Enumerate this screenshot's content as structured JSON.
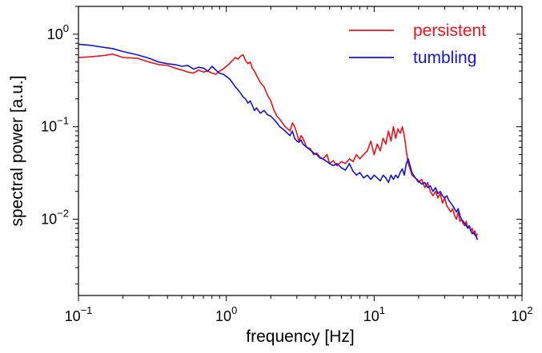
{
  "chart_data": {
    "type": "line",
    "xlabel": "frequency [Hz]",
    "ylabel": "spectral power [a.u.]",
    "xscale": "log",
    "yscale": "log",
    "xlim": [
      0.1,
      100
    ],
    "ylim": [
      0.0015,
      2.0
    ],
    "xticks": [
      {
        "value": 0.1,
        "base": "10",
        "exp": "−1"
      },
      {
        "value": 1,
        "base": "10",
        "exp": "0"
      },
      {
        "value": 10,
        "base": "10",
        "exp": "1"
      },
      {
        "value": 100,
        "base": "10",
        "exp": "2"
      }
    ],
    "yticks": [
      {
        "value": 0.01,
        "base": "10",
        "exp": "−2"
      },
      {
        "value": 0.1,
        "base": "10",
        "exp": "−1"
      },
      {
        "value": 1,
        "base": "10",
        "exp": "0"
      }
    ],
    "grid": false,
    "legend_position": "top-right",
    "series": [
      {
        "name": "persistent",
        "color": "#e8141c",
        "x": [
          0.1,
          0.12,
          0.15,
          0.17,
          0.2,
          0.25,
          0.3,
          0.35,
          0.4,
          0.45,
          0.5,
          0.55,
          0.6,
          0.65,
          0.7,
          0.75,
          0.8,
          0.85,
          0.9,
          0.95,
          1.0,
          1.05,
          1.1,
          1.15,
          1.2,
          1.25,
          1.3,
          1.35,
          1.4,
          1.45,
          1.5,
          1.55,
          1.6,
          1.7,
          1.8,
          1.9,
          2.0,
          2.1,
          2.2,
          2.3,
          2.4,
          2.5,
          2.6,
          2.7,
          2.8,
          2.9,
          3.0,
          3.1,
          3.2,
          3.3,
          3.5,
          3.7,
          3.9,
          4.1,
          4.3,
          4.5,
          4.8,
          5.0,
          5.3,
          5.6,
          6.0,
          6.4,
          6.8,
          7.2,
          7.6,
          8.0,
          8.5,
          9.0,
          9.5,
          10.0,
          10.5,
          11.0,
          11.5,
          12.0,
          12.5,
          13.0,
          13.5,
          14.0,
          14.5,
          15.0,
          15.5,
          16.0,
          16.5,
          17.0,
          17.5,
          18.0,
          19.0,
          20.0,
          21.0,
          22.0,
          23.0,
          24.0,
          25.0,
          26.0,
          27.0,
          28.0,
          29.0,
          30.0,
          31.0,
          32.0,
          33.0,
          34.0,
          35.0,
          36.0,
          37.0,
          38.0,
          39.0,
          40.0,
          41.0,
          42.0,
          43.0,
          44.0,
          45.0,
          46.0,
          47.0,
          48.0,
          49.0,
          50.0
        ],
        "y": [
          0.56,
          0.57,
          0.59,
          0.61,
          0.56,
          0.55,
          0.5,
          0.47,
          0.46,
          0.43,
          0.41,
          0.39,
          0.38,
          0.41,
          0.39,
          0.4,
          0.38,
          0.37,
          0.4,
          0.42,
          0.45,
          0.48,
          0.52,
          0.56,
          0.54,
          0.58,
          0.6,
          0.52,
          0.48,
          0.5,
          0.43,
          0.4,
          0.36,
          0.3,
          0.27,
          0.22,
          0.19,
          0.15,
          0.13,
          0.12,
          0.11,
          0.1,
          0.095,
          0.09,
          0.11,
          0.1,
          0.085,
          0.07,
          0.08,
          0.075,
          0.06,
          0.058,
          0.05,
          0.052,
          0.047,
          0.045,
          0.05,
          0.04,
          0.043,
          0.038,
          0.042,
          0.04,
          0.045,
          0.042,
          0.05,
          0.045,
          0.05,
          0.055,
          0.07,
          0.05,
          0.065,
          0.055,
          0.075,
          0.065,
          0.09,
          0.07,
          0.1,
          0.075,
          0.095,
          0.085,
          0.1,
          0.08,
          0.055,
          0.04,
          0.035,
          0.03,
          0.028,
          0.025,
          0.027,
          0.022,
          0.025,
          0.02,
          0.018,
          0.02,
          0.017,
          0.019,
          0.015,
          0.017,
          0.014,
          0.013,
          0.012,
          0.013,
          0.011,
          0.01,
          0.012,
          0.0095,
          0.01,
          0.009,
          0.0085,
          0.0095,
          0.008,
          0.0085,
          0.0075,
          0.008,
          0.007,
          0.0075,
          0.0065,
          0.007
        ]
      },
      {
        "name": "tumbling",
        "color": "#1414d2",
        "x": [
          0.1,
          0.12,
          0.15,
          0.17,
          0.2,
          0.25,
          0.3,
          0.35,
          0.4,
          0.45,
          0.5,
          0.55,
          0.6,
          0.65,
          0.7,
          0.75,
          0.8,
          0.85,
          0.9,
          0.95,
          1.0,
          1.05,
          1.1,
          1.15,
          1.2,
          1.25,
          1.3,
          1.35,
          1.4,
          1.45,
          1.5,
          1.55,
          1.6,
          1.7,
          1.8,
          1.9,
          2.0,
          2.1,
          2.2,
          2.3,
          2.4,
          2.5,
          2.6,
          2.7,
          2.8,
          2.9,
          3.0,
          3.1,
          3.2,
          3.3,
          3.5,
          3.7,
          3.9,
          4.1,
          4.3,
          4.5,
          4.8,
          5.0,
          5.3,
          5.6,
          6.0,
          6.4,
          6.8,
          7.2,
          7.6,
          8.0,
          8.5,
          9.0,
          9.5,
          10.0,
          10.5,
          11.0,
          11.5,
          12.0,
          12.5,
          13.0,
          13.5,
          14.0,
          14.5,
          15.0,
          15.5,
          16.0,
          16.5,
          17.0,
          17.5,
          18.0,
          19.0,
          20.0,
          21.0,
          22.0,
          23.0,
          24.0,
          25.0,
          26.0,
          27.0,
          28.0,
          29.0,
          30.0,
          31.0,
          32.0,
          33.0,
          34.0,
          35.0,
          36.0,
          37.0,
          38.0,
          39.0,
          40.0,
          41.0,
          42.0,
          43.0,
          44.0,
          45.0,
          46.0,
          47.0,
          48.0,
          49.0,
          50.0
        ],
        "y": [
          0.78,
          0.76,
          0.72,
          0.7,
          0.65,
          0.6,
          0.55,
          0.5,
          0.48,
          0.47,
          0.45,
          0.46,
          0.42,
          0.44,
          0.43,
          0.4,
          0.45,
          0.41,
          0.38,
          0.37,
          0.35,
          0.33,
          0.3,
          0.27,
          0.25,
          0.23,
          0.21,
          0.2,
          0.18,
          0.19,
          0.17,
          0.15,
          0.16,
          0.14,
          0.15,
          0.135,
          0.13,
          0.12,
          0.11,
          0.1,
          0.095,
          0.09,
          0.085,
          0.08,
          0.09,
          0.075,
          0.07,
          0.068,
          0.072,
          0.065,
          0.06,
          0.056,
          0.052,
          0.05,
          0.046,
          0.045,
          0.042,
          0.04,
          0.038,
          0.04,
          0.036,
          0.034,
          0.04,
          0.033,
          0.03,
          0.032,
          0.028,
          0.03,
          0.027,
          0.03,
          0.028,
          0.026,
          0.03,
          0.028,
          0.025,
          0.03,
          0.027,
          0.03,
          0.028,
          0.032,
          0.035,
          0.03,
          0.04,
          0.045,
          0.038,
          0.032,
          0.028,
          0.026,
          0.024,
          0.025,
          0.022,
          0.023,
          0.02,
          0.022,
          0.019,
          0.02,
          0.018,
          0.017,
          0.018,
          0.016,
          0.015,
          0.014,
          0.013,
          0.012,
          0.013,
          0.011,
          0.01,
          0.0095,
          0.009,
          0.0085,
          0.008,
          0.0085,
          0.0075,
          0.007,
          0.0072,
          0.0068,
          0.0065,
          0.006
        ]
      }
    ]
  }
}
